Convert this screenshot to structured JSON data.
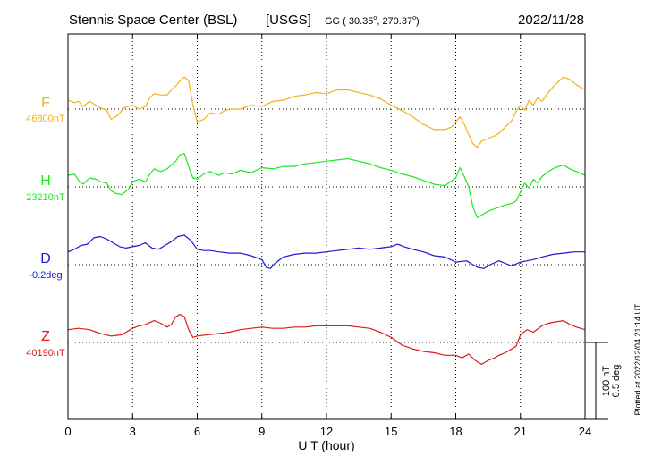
{
  "header": {
    "station": "Stennis Space Center (BSL)",
    "agency": "[USGS]",
    "coords_prefix": "GG ( 30.35",
    "coords_mid": ", 270.37",
    "coords_suffix": ")",
    "date": "2022/11/28"
  },
  "side_note": "Plotted at 2022/12/04 21:14 UT",
  "scale_bar": {
    "line1": "100 nT",
    "line2": "0.5 deg"
  },
  "colors": {
    "F": "#f2b11a",
    "H": "#1ee81e",
    "D": "#1a1ad0",
    "Z": "#e01a1a",
    "axis": "#000000",
    "grid": "#000000"
  },
  "chart_data": {
    "type": "line",
    "title": "Stennis Space Center (BSL) [USGS]",
    "xlabel": "U T (hour)",
    "ylabel": "",
    "xlim": [
      0,
      24
    ],
    "x_ticks": [
      "0",
      "3",
      "6",
      "9",
      "12",
      "15",
      "18",
      "21",
      "24"
    ],
    "grid": "dotted",
    "series": [
      {
        "name": "F",
        "baseline_label": "46800nT",
        "color": "#f2b11a",
        "row": 0,
        "x": [
          0,
          0.3,
          0.5,
          0.7,
          1,
          1.3,
          1.5,
          1.8,
          2,
          2.3,
          2.6,
          3,
          3.3,
          3.6,
          3.8,
          4,
          4.3,
          4.6,
          4.8,
          5,
          5.2,
          5.4,
          5.6,
          5.8,
          6,
          6.3,
          6.6,
          7,
          7.3,
          7.6,
          8,
          8.5,
          9,
          9.5,
          10,
          10.5,
          11,
          11.5,
          12,
          12.5,
          13,
          13.5,
          14,
          14.5,
          15,
          15.5,
          16,
          16.5,
          17,
          17.5,
          17.8,
          18,
          18.2,
          18.4,
          18.6,
          18.8,
          19,
          19.2,
          19.5,
          19.8,
          20,
          20.3,
          20.6,
          20.8,
          21,
          21.2,
          21.4,
          21.6,
          21.8,
          22,
          22.3,
          22.6,
          23,
          23.3,
          23.6,
          24
        ],
        "y": [
          37,
          35,
          36,
          32,
          36,
          33,
          31,
          29,
          22,
          25,
          31,
          33,
          30,
          32,
          39,
          42,
          41,
          41,
          45,
          48,
          52,
          55,
          52,
          33,
          20,
          22,
          27,
          26,
          29,
          30,
          30,
          33,
          32,
          36,
          37,
          40,
          41,
          43,
          42,
          45,
          45,
          43,
          41,
          38,
          33,
          29,
          24,
          18,
          14,
          14,
          16,
          20,
          24,
          18,
          10,
          3,
          0,
          5,
          7,
          9,
          11,
          16,
          21,
          28,
          33,
          29,
          37,
          33,
          39,
          36,
          43,
          49,
          55,
          53,
          49,
          45
        ]
      },
      {
        "name": "H",
        "baseline_label": "23210nT",
        "color": "#1ee81e",
        "row": 1,
        "x": [
          0,
          0.3,
          0.5,
          0.7,
          1,
          1.3,
          1.5,
          1.8,
          2,
          2.2,
          2.5,
          2.8,
          3,
          3.3,
          3.6,
          3.8,
          4,
          4.3,
          4.6,
          4.8,
          5,
          5.2,
          5.4,
          5.6,
          5.8,
          6,
          6.3,
          6.6,
          7,
          7.3,
          7.6,
          8,
          8.5,
          9,
          9.5,
          10,
          10.5,
          11,
          11.5,
          12,
          12.5,
          13,
          13.5,
          14,
          14.5,
          15,
          15.5,
          16,
          16.5,
          17,
          17.5,
          18,
          18.2,
          18.4,
          18.6,
          18.8,
          19,
          19.2,
          19.5,
          19.8,
          20,
          20.3,
          20.6,
          20.8,
          21,
          21.2,
          21.4,
          21.6,
          21.8,
          22,
          22.3,
          22.6,
          23,
          23.3,
          23.6,
          24
        ],
        "y": [
          39,
          40,
          35,
          32,
          37,
          36,
          34,
          33,
          27,
          25,
          24,
          28,
          34,
          36,
          34,
          40,
          44,
          42,
          44,
          47,
          50,
          55,
          56,
          46,
          37,
          36,
          40,
          42,
          39,
          41,
          40,
          43,
          41,
          45,
          44,
          46,
          46,
          48,
          49,
          50,
          51,
          52,
          50,
          48,
          45,
          43,
          40,
          38,
          35,
          32,
          31,
          37,
          45,
          38,
          30,
          14,
          6,
          8,
          11,
          13,
          14,
          16,
          17,
          19,
          26,
          33,
          29,
          36,
          33,
          38,
          42,
          45,
          47,
          44,
          42,
          39
        ]
      },
      {
        "name": "D",
        "baseline_label": "-0.2deg",
        "color": "#1a1ad0",
        "row": 2,
        "x": [
          0,
          0.3,
          0.6,
          0.9,
          1.2,
          1.5,
          1.8,
          2.1,
          2.4,
          2.7,
          3,
          3.3,
          3.6,
          3.9,
          4.2,
          4.5,
          4.8,
          5.1,
          5.4,
          5.7,
          6,
          6.3,
          6.6,
          7,
          7.5,
          8,
          8.5,
          9,
          9.2,
          9.4,
          9.6,
          10,
          10.5,
          11,
          11.5,
          12,
          12.5,
          13,
          13.5,
          14,
          14.5,
          15,
          15.3,
          15.6,
          16,
          16.5,
          17,
          17.5,
          18,
          18.5,
          19,
          19.3,
          19.6,
          20,
          20.3,
          20.6,
          21,
          21.3,
          21.6,
          22,
          22.5,
          23,
          23.5,
          24
        ],
        "y": [
          40,
          42,
          45,
          46,
          51,
          52,
          50,
          47,
          44,
          43,
          44,
          45,
          47,
          43,
          42,
          45,
          48,
          52,
          53,
          49,
          42,
          41,
          41,
          40,
          39,
          39,
          37,
          34,
          28,
          27,
          31,
          36,
          38,
          39,
          39,
          40,
          41,
          42,
          43,
          42,
          43,
          44,
          46,
          44,
          42,
          40,
          37,
          36,
          32,
          33,
          28,
          27,
          30,
          33,
          31,
          29,
          32,
          33,
          34,
          36,
          38,
          39,
          40,
          40
        ]
      },
      {
        "name": "Z",
        "baseline_label": "40190nT",
        "color": "#e01a1a",
        "row": 3,
        "x": [
          0,
          0.5,
          1,
          1.5,
          2,
          2.5,
          3,
          3.3,
          3.6,
          4,
          4.3,
          4.6,
          4.8,
          5,
          5.2,
          5.4,
          5.6,
          5.8,
          6,
          6.5,
          7,
          7.5,
          8,
          8.5,
          9,
          9.5,
          10,
          10.5,
          11,
          11.5,
          12,
          12.5,
          13,
          13.5,
          14,
          14.5,
          15,
          15.5,
          16,
          16.5,
          17,
          17.5,
          18,
          18.3,
          18.6,
          18.9,
          19.2,
          19.5,
          19.8,
          20,
          20.3,
          20.6,
          20.8,
          21,
          21.3,
          21.6,
          22,
          22.3,
          22.6,
          23,
          23.3,
          23.6,
          24
        ],
        "y": [
          40,
          41,
          40,
          37,
          35,
          36,
          41,
          43,
          44,
          47,
          45,
          42,
          44,
          50,
          52,
          50,
          40,
          34,
          35,
          36,
          37,
          38,
          40,
          41,
          42,
          41,
          41,
          42,
          42,
          43,
          43,
          43,
          43,
          42,
          41,
          38,
          34,
          28,
          25,
          23,
          22,
          20,
          20,
          18,
          21,
          16,
          13,
          16,
          18,
          20,
          22,
          25,
          27,
          36,
          40,
          38,
          43,
          45,
          46,
          47,
          44,
          42,
          40
        ]
      }
    ]
  }
}
